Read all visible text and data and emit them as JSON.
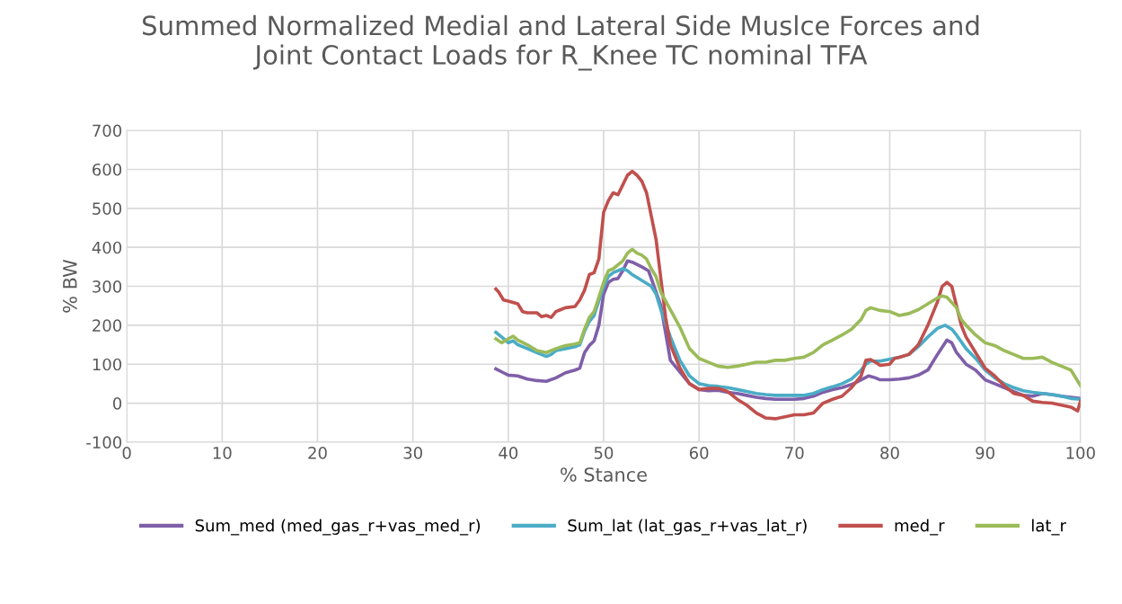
{
  "chart_data": {
    "type": "line",
    "title": "Summed Normalized Medial and Lateral Side Muslce Forces and\nJoint Contact Loads for R_Knee TC nominal TFA",
    "xlabel": "% Stance",
    "ylabel": "% BW",
    "xlim": [
      0,
      100
    ],
    "xticks": [
      0,
      10,
      20,
      30,
      40,
      50,
      60,
      70,
      80,
      90,
      100
    ],
    "ylim": [
      -100,
      700
    ],
    "yticks": [
      -100,
      0,
      100,
      200,
      300,
      400,
      500,
      600,
      700
    ],
    "grid": true,
    "legend": "bottom",
    "marker": "none",
    "line_style": "solid",
    "series": [
      {
        "name": "Sum_med (med_gas_r+vas_med_r)",
        "color": "#7f5fa8",
        "x": [
          38.7,
          39.5,
          40,
          41,
          42,
          43,
          44,
          45,
          46,
          47,
          47.5,
          48,
          48.5,
          49,
          49.5,
          50,
          50.5,
          51,
          51.5,
          52,
          52.5,
          53,
          54,
          54.7,
          55,
          56,
          56.5,
          57,
          58,
          59,
          60,
          61,
          62,
          63,
          64,
          65,
          66,
          67,
          68,
          70,
          71,
          72,
          73,
          74,
          75,
          76,
          77,
          77.8,
          78.5,
          79,
          80,
          81,
          82,
          83,
          84,
          85,
          86,
          86.5,
          87,
          88,
          89,
          90,
          91,
          92,
          93,
          94,
          95,
          96,
          97,
          98,
          99,
          100
        ],
        "values": [
          88,
          78,
          72,
          70,
          62,
          58,
          56,
          65,
          78,
          85,
          90,
          130,
          148,
          160,
          200,
          280,
          310,
          318,
          320,
          340,
          365,
          362,
          350,
          340,
          320,
          250,
          180,
          110,
          80,
          50,
          35,
          32,
          33,
          28,
          25,
          20,
          15,
          12,
          10,
          10,
          12,
          18,
          28,
          35,
          40,
          48,
          60,
          70,
          65,
          60,
          60,
          62,
          65,
          72,
          85,
          125,
          162,
          155,
          130,
          100,
          85,
          60,
          50,
          40,
          30,
          20,
          18,
          25,
          22,
          18,
          15,
          12
        ]
      },
      {
        "name": "Sum_lat (lat_gas_r+vas_lat_r)",
        "color": "#4bacc6",
        "x": [
          38.7,
          39.3,
          40,
          40.5,
          41,
          42,
          43,
          44,
          44.5,
          45,
          46,
          47,
          47.5,
          48,
          48.5,
          49,
          50,
          50.5,
          51,
          52,
          52.5,
          53,
          54,
          55,
          55.5,
          56,
          57,
          58,
          59,
          60,
          61,
          62,
          63,
          64,
          65,
          66,
          67,
          68,
          70,
          71,
          72,
          73,
          74,
          75,
          76,
          77,
          77.5,
          78,
          79,
          81,
          82,
          83,
          84,
          85,
          85.8,
          86.5,
          87,
          88,
          89,
          90,
          91,
          92,
          93,
          94,
          95,
          96,
          97,
          98,
          99,
          100
        ],
        "values": [
          182,
          170,
          155,
          160,
          150,
          140,
          130,
          120,
          125,
          135,
          140,
          145,
          150,
          185,
          210,
          225,
          300,
          325,
          335,
          345,
          340,
          330,
          315,
          300,
          280,
          240,
          170,
          110,
          70,
          50,
          45,
          43,
          40,
          35,
          30,
          25,
          22,
          20,
          20,
          20,
          25,
          35,
          42,
          50,
          62,
          85,
          100,
          108,
          108,
          118,
          125,
          145,
          170,
          192,
          200,
          190,
          175,
          140,
          115,
          85,
          65,
          50,
          40,
          32,
          28,
          25,
          22,
          18,
          12,
          10
        ]
      },
      {
        "name": "med_r",
        "color": "#c0504d",
        "x": [
          38.7,
          39,
          39.5,
          40,
          41,
          41.5,
          42,
          43,
          43.5,
          44,
          44.5,
          45,
          45.5,
          46,
          47,
          47.5,
          48,
          48.5,
          49,
          49.5,
          50,
          50.5,
          51,
          51.5,
          52,
          52.5,
          53,
          53.5,
          54,
          54.5,
          55,
          55.5,
          56,
          56.5,
          57,
          58,
          59,
          60,
          61,
          62,
          63,
          64,
          65,
          66,
          67,
          68,
          69,
          70,
          71,
          72,
          73,
          74,
          75,
          76,
          77,
          77.5,
          78,
          78.5,
          79,
          80,
          80.5,
          81,
          82,
          83,
          84,
          85,
          85.5,
          86,
          86.5,
          87,
          87.5,
          88,
          89,
          90,
          91,
          92,
          93,
          94,
          95,
          96,
          97,
          98,
          99,
          99.7,
          100
        ],
        "values": [
          293,
          285,
          265,
          262,
          255,
          235,
          232,
          232,
          222,
          225,
          220,
          235,
          240,
          245,
          248,
          265,
          290,
          330,
          335,
          370,
          490,
          520,
          540,
          535,
          560,
          585,
          595,
          585,
          570,
          540,
          480,
          420,
          320,
          220,
          150,
          90,
          50,
          35,
          38,
          38,
          30,
          10,
          -5,
          -25,
          -38,
          -40,
          -35,
          -30,
          -30,
          -25,
          0,
          10,
          18,
          40,
          70,
          110,
          112,
          105,
          97,
          100,
          115,
          118,
          125,
          150,
          200,
          260,
          300,
          310,
          300,
          250,
          200,
          170,
          130,
          90,
          70,
          45,
          25,
          20,
          5,
          2,
          0,
          -5,
          -10,
          -20,
          5
        ]
      },
      {
        "name": "lat_r",
        "color": "#9bbb59",
        "x": [
          38.7,
          39.3,
          40,
          40.5,
          41,
          42,
          43,
          44,
          45,
          46,
          47,
          47.5,
          48,
          48.5,
          49,
          50,
          50.5,
          51,
          52,
          52.5,
          53,
          53.5,
          54,
          54.5,
          55,
          55.5,
          56,
          57,
          58,
          59,
          60,
          61,
          62,
          63,
          64,
          65,
          66,
          67,
          68,
          69,
          70,
          71,
          72,
          73,
          74,
          75,
          76,
          77,
          77.5,
          78,
          79,
          80,
          81,
          82,
          83,
          84,
          85,
          85.5,
          86,
          87,
          87.5,
          88,
          89,
          90,
          91,
          92,
          93,
          94,
          95,
          96,
          97,
          98,
          99,
          100
        ],
        "values": [
          165,
          155,
          165,
          172,
          162,
          150,
          135,
          130,
          140,
          148,
          152,
          155,
          190,
          220,
          235,
          310,
          340,
          345,
          365,
          385,
          395,
          385,
          380,
          370,
          345,
          325,
          285,
          240,
          195,
          140,
          115,
          105,
          95,
          92,
          95,
          100,
          105,
          105,
          110,
          110,
          115,
          118,
          130,
          150,
          162,
          175,
          190,
          215,
          238,
          245,
          238,
          235,
          225,
          230,
          240,
          255,
          270,
          275,
          272,
          245,
          215,
          200,
          175,
          155,
          148,
          135,
          125,
          115,
          115,
          118,
          105,
          95,
          85,
          45
        ]
      }
    ]
  }
}
